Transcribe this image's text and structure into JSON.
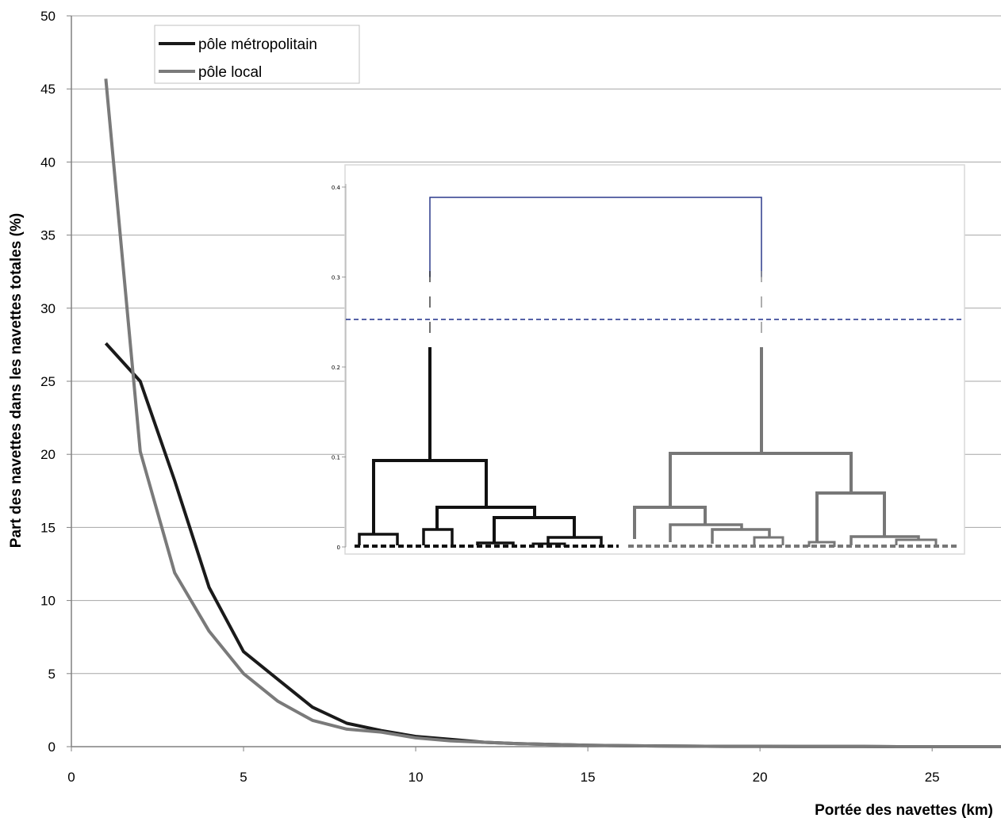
{
  "chart_data": {
    "type": "line",
    "xlabel": "Portée des navettes (km)",
    "ylabel": "Part des navettes dans les navettes totales (%)",
    "xlim": [
      0,
      27
    ],
    "ylim": [
      0,
      50
    ],
    "xticks": [
      0,
      5,
      10,
      15,
      20,
      25
    ],
    "yticks": [
      0,
      5,
      10,
      15,
      20,
      25,
      30,
      35,
      40,
      45,
      50
    ],
    "grid": "horizontal",
    "legend_position": "top-left",
    "series": [
      {
        "name": "pôle métropolitain",
        "color": "#1a1a1a",
        "x": [
          1,
          2,
          3,
          4,
          5,
          6,
          7,
          8,
          9,
          10,
          11,
          12,
          13,
          14,
          15,
          16,
          17,
          18,
          19,
          20,
          21,
          22,
          23,
          24,
          25,
          26,
          27
        ],
        "y": [
          27.6,
          25.0,
          18.2,
          10.9,
          6.5,
          4.6,
          2.7,
          1.6,
          1.1,
          0.7,
          0.5,
          0.3,
          0.2,
          0.15,
          0.1,
          0.07,
          0.05,
          0.03,
          0.02,
          0.02,
          0.01,
          0.01,
          0.01,
          0.0,
          0.0,
          0.0,
          0.0
        ]
      },
      {
        "name": "pôle local",
        "color": "#7a7a7a",
        "x": [
          1,
          2,
          3,
          4,
          5,
          6,
          7,
          8,
          9,
          10,
          11,
          12,
          13,
          14,
          15,
          16,
          17,
          18,
          19,
          20,
          21,
          22,
          23,
          24,
          25,
          26,
          27
        ],
        "y": [
          45.7,
          20.2,
          11.9,
          7.9,
          5.0,
          3.1,
          1.8,
          1.2,
          1.0,
          0.6,
          0.4,
          0.3,
          0.2,
          0.15,
          0.1,
          0.07,
          0.05,
          0.03,
          0.02,
          0.02,
          0.01,
          0.01,
          0.01,
          0.0,
          0.0,
          0.0,
          0.0
        ]
      }
    ],
    "inset": {
      "type": "dendrogram",
      "yticks": [
        "0",
        "0.1",
        "0.2",
        "0.3",
        "0.4"
      ],
      "ylim": [
        0,
        0.4
      ],
      "cut_height": 0.252,
      "root_height": 0.388,
      "colors": {
        "left_cluster": "#111111",
        "right_cluster": "#777777",
        "root": "#2b3a8c",
        "cut_line": "#1e2e8a"
      }
    }
  }
}
